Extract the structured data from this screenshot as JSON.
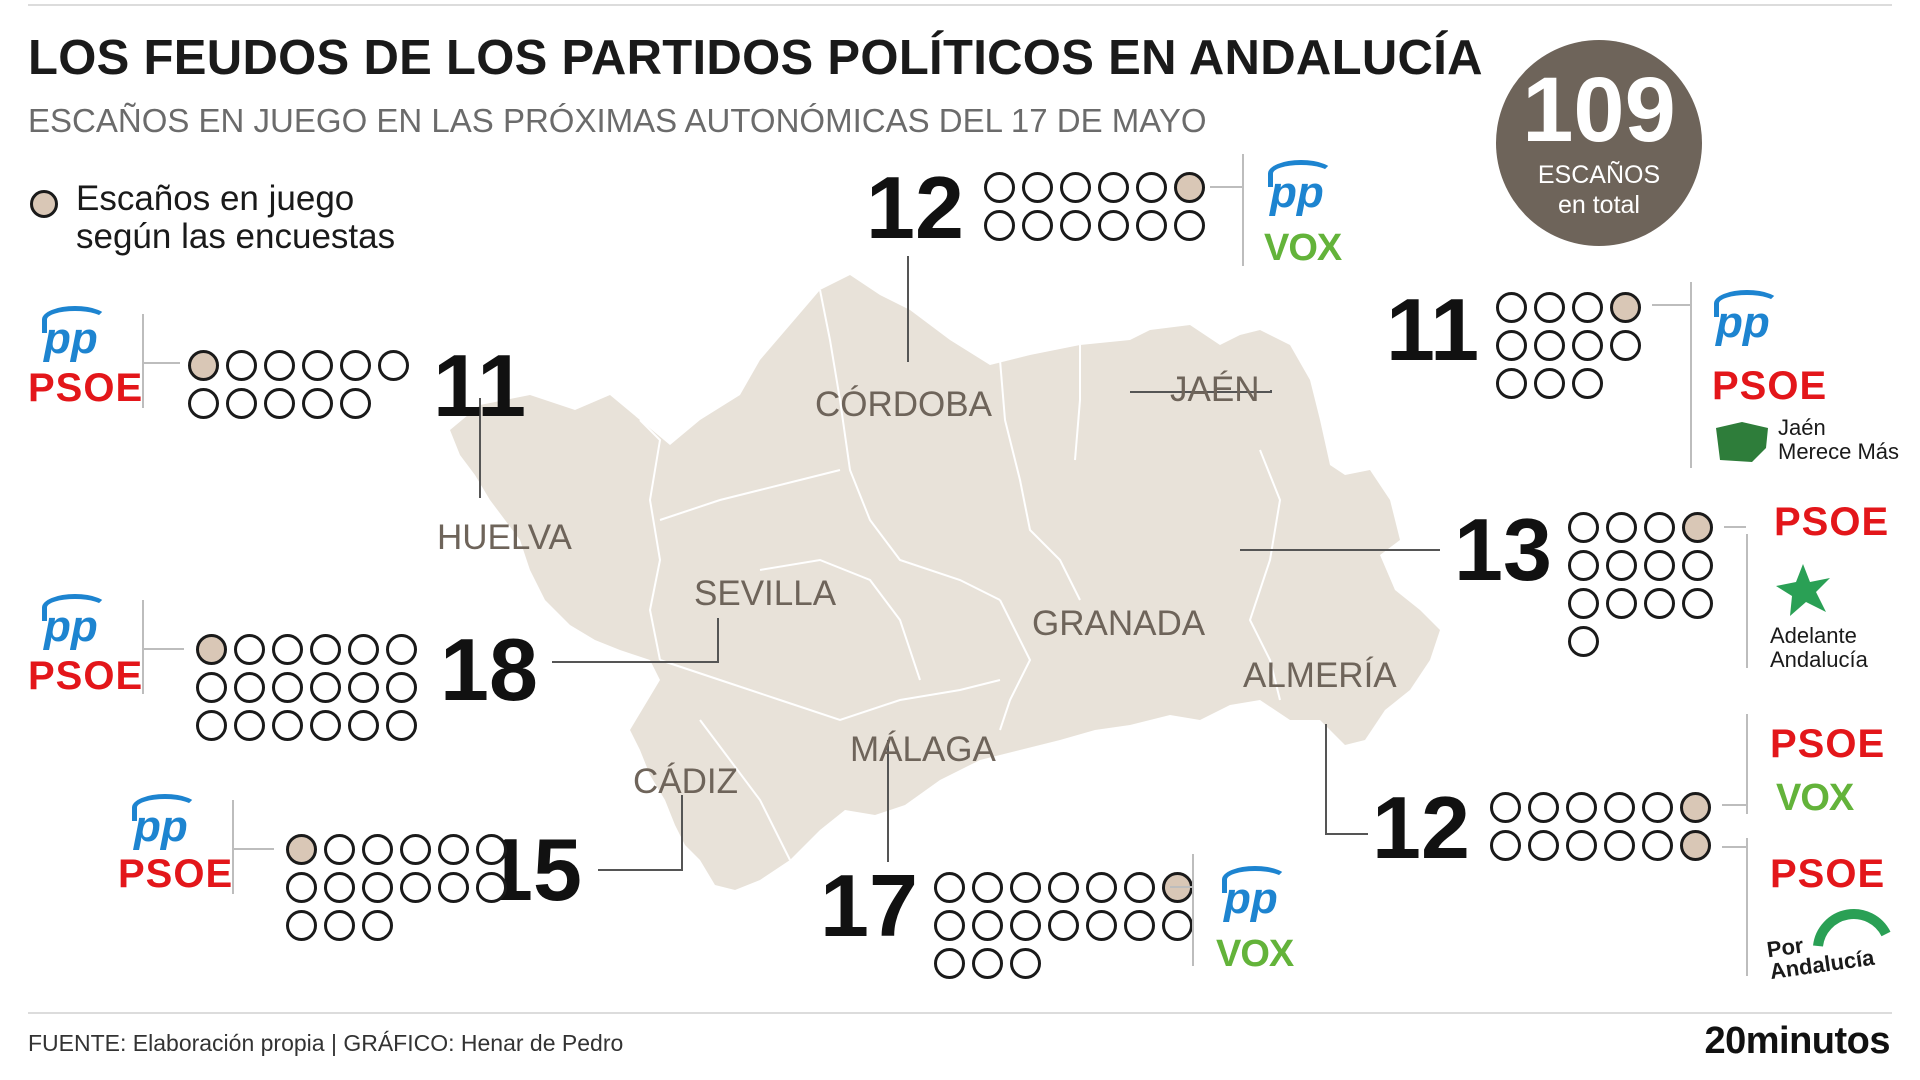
{
  "title": "LOS FEUDOS DE LOS PARTIDOS POLÍTICOS EN ANDALUCÍA",
  "subtitle": "ESCAÑOS EN JUEGO EN LAS PRÓXIMAS AUTONÓMICAS DEL 17 DE MAYO",
  "total": {
    "value": "109",
    "label1": "ESCAÑOS",
    "label2": "en total"
  },
  "legend": {
    "line1": "Escaños en juego",
    "line2": "según las encuestas"
  },
  "colors": {
    "map": "#e8e2d9",
    "highlight_dot": "#d9c7b6",
    "total_circle": "#6e645a",
    "pp": "#1d84d0",
    "psoe": "#e3161a",
    "vox": "#63b33a"
  },
  "provinces": {
    "cordoba": {
      "name": "CÓRDOBA",
      "seats": 12,
      "in_play": 1,
      "parties": [
        "PP",
        "VOX"
      ]
    },
    "jaen": {
      "name": "JAÉN",
      "seats": 11,
      "in_play": 1,
      "parties": [
        "PP",
        "PSOE",
        "Jaén Merece Más"
      ]
    },
    "huelva": {
      "name": "HUELVA",
      "seats": 11,
      "in_play": 1,
      "parties": [
        "PP",
        "PSOE"
      ]
    },
    "sevilla": {
      "name": "SEVILLA",
      "seats": 18,
      "in_play": 1,
      "parties": [
        "PP",
        "PSOE"
      ]
    },
    "granada": {
      "name": "GRANADA",
      "seats": 13,
      "in_play": 1,
      "parties": [
        "PSOE",
        "Adelante Andalucía"
      ]
    },
    "almeria": {
      "name": "ALMERÍA",
      "seats": 12,
      "in_play": 2,
      "parties": [
        "PSOE",
        "VOX",
        "PSOE",
        "Por Andalucía"
      ]
    },
    "cadiz": {
      "name": "CÁDIZ",
      "seats": 15,
      "in_play": 1,
      "parties": [
        "PP",
        "PSOE"
      ]
    },
    "malaga": {
      "name": "MÁLAGA",
      "seats": 17,
      "in_play": 1,
      "parties": [
        "PP",
        "VOX"
      ]
    }
  },
  "party_labels": {
    "pp": "pp",
    "psoe": "PSOE",
    "vox": "VOX",
    "jmm_line1": "Jaén",
    "jmm_line2": "Merece Más",
    "aa_line1": "Adelante",
    "aa_line2": "Andalucía",
    "por_line1": "Por",
    "por_line2": "Andalucía"
  },
  "footer": {
    "source": "FUENTE: Elaboración propia  |  GRÁFICO: Henar de Pedro",
    "brand": "20minutos"
  }
}
